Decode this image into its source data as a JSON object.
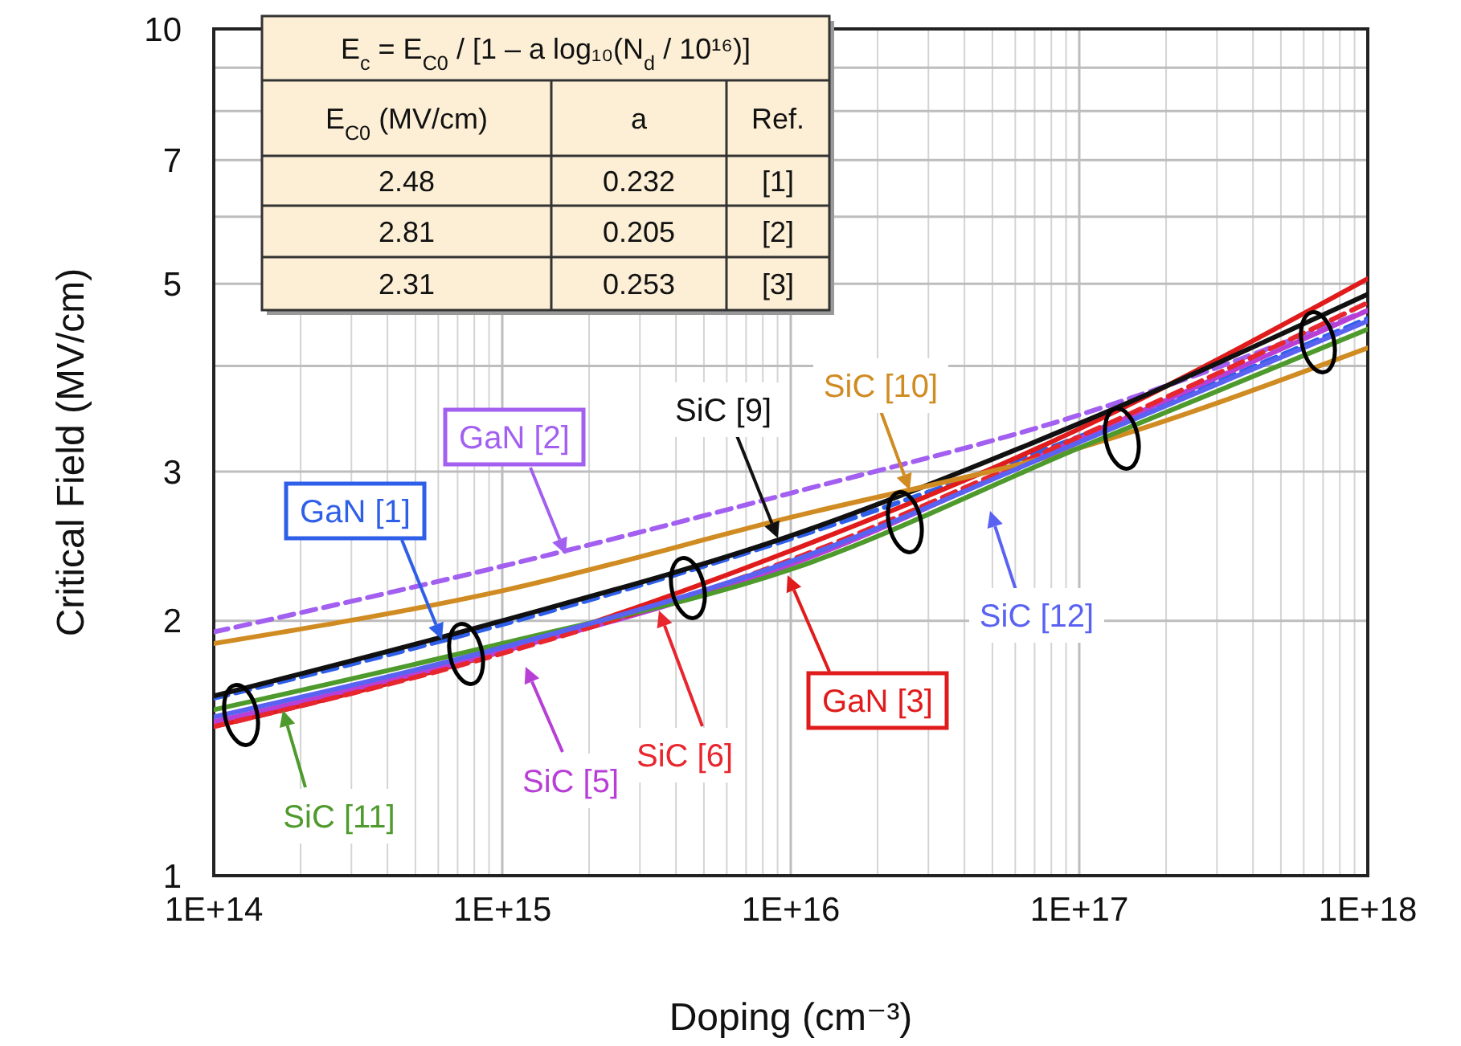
{
  "chart_data": {
    "type": "line",
    "xlabel": "Doping  (cm⁻³)",
    "ylabel": "Critical Field  (MV/cm)",
    "log": "xy",
    "grid": true,
    "legend": "bottom",
    "line_style": "solid",
    "marker": "none",
    "xlim": [
      100000000000000.0,
      1e+18
    ],
    "ylim": [
      1,
      10
    ],
    "xticks": [
      {
        "value": 100000000000000.0,
        "label": "1E+14"
      },
      {
        "value": 200000000000000.0,
        "label": null
      },
      {
        "value": 300000000000000.0,
        "label": null
      },
      {
        "value": 400000000000000.0,
        "label": null
      },
      {
        "value": 500000000000000.0,
        "label": null
      },
      {
        "value": 600000000000000.0,
        "label": null
      },
      {
        "value": 700000000000000.0,
        "label": null
      },
      {
        "value": 800000000000000.0,
        "label": null
      },
      {
        "value": 900000000000000.0,
        "label": null
      },
      {
        "value": 1000000000000000.0,
        "label": "1E+15"
      },
      {
        "value": 2000000000000000.0,
        "label": null
      },
      {
        "value": 3000000000000000.0,
        "label": null
      },
      {
        "value": 4000000000000000.0,
        "label": null
      },
      {
        "value": 5000000000000000.0,
        "label": null
      },
      {
        "value": 6000000000000000.0,
        "label": null
      },
      {
        "value": 7000000000000000.0,
        "label": null
      },
      {
        "value": 8000000000000000.0,
        "label": null
      },
      {
        "value": 9000000000000000.0,
        "label": null
      },
      {
        "value": 1e+16,
        "label": "1E+16"
      },
      {
        "value": 2e+16,
        "label": null
      },
      {
        "value": 3e+16,
        "label": null
      },
      {
        "value": 4e+16,
        "label": null
      },
      {
        "value": 5e+16,
        "label": null
      },
      {
        "value": 6e+16,
        "label": null
      },
      {
        "value": 7e+16,
        "label": null
      },
      {
        "value": 8e+16,
        "label": null
      },
      {
        "value": 9e+16,
        "label": null
      },
      {
        "value": 1e+17,
        "label": "1E+17"
      },
      {
        "value": 2e+17,
        "label": null
      },
      {
        "value": 3e+17,
        "label": null
      },
      {
        "value": 4e+17,
        "label": null
      },
      {
        "value": 5e+17,
        "label": null
      },
      {
        "value": 6e+17,
        "label": null
      },
      {
        "value": 7e+17,
        "label": null
      },
      {
        "value": 8e+17,
        "label": null
      },
      {
        "value": 9e+17,
        "label": null
      },
      {
        "value": 1e+18,
        "label": "1E+18"
      }
    ],
    "yticks": [
      1,
      2,
      3,
      {
        "value": 4,
        "label": null
      },
      5,
      {
        "value": 6,
        "label": null
      },
      7,
      {
        "value": 8,
        "label": null
      },
      {
        "value": 9,
        "label": null
      },
      10
    ],
    "x": [
      100000000000000.0,
      1000000000000000.0,
      1e+16,
      1e+17,
      1e+18
    ],
    "series": [
      {
        "name": "GaN [1]",
        "color": "#2f5fe8",
        "values": [
          1.62,
          1.98,
          2.5,
          3.3,
          4.55
        ],
        "line_style": "dashed"
      },
      {
        "name": "GaN [2]",
        "color": "#a25ff0",
        "values": [
          1.94,
          2.32,
          2.83,
          3.5,
          4.65
        ],
        "line_style": "dashed"
      },
      {
        "name": "GaN [3]",
        "color": "#e01b1b",
        "values": [
          1.5,
          1.84,
          2.42,
          3.37,
          5.07
        ]
      },
      {
        "name": "SiC [5]",
        "color": "#b83fd6",
        "values": [
          1.52,
          1.84,
          2.33,
          3.28,
          4.65
        ]
      },
      {
        "name": "SiC [6]",
        "color": "#e8262e",
        "values": [
          1.5,
          1.83,
          2.36,
          3.3,
          4.75
        ],
        "line_style": "dashed"
      },
      {
        "name": "SiC [9]",
        "color": "#111111",
        "values": [
          1.63,
          2.0,
          2.52,
          3.42,
          4.86
        ]
      },
      {
        "name": "SiC [10]",
        "color": "#d08c22",
        "values": [
          1.88,
          2.17,
          2.65,
          3.2,
          4.2
        ]
      },
      {
        "name": "SiC [11]",
        "color": "#4e9a2c",
        "values": [
          1.57,
          1.88,
          2.3,
          3.2,
          4.42
        ]
      },
      {
        "name": "SiC [12]",
        "color": "#5a62f2",
        "values": [
          1.54,
          1.86,
          2.35,
          3.25,
          4.52
        ]
      }
    ],
    "annotations": [
      "E$_{c}$ = E$_{C0}$ / [1 – a log₁₀(N$_{d}$ / 10¹⁶)]",
      "E$_{C0}$ (MV/cm)",
      "a",
      "Ref.",
      "2.48",
      "0.232",
      "[1]",
      "2.81",
      "0.205",
      "[2]",
      "2.31",
      "0.253",
      "[3]"
    ]
  }
}
